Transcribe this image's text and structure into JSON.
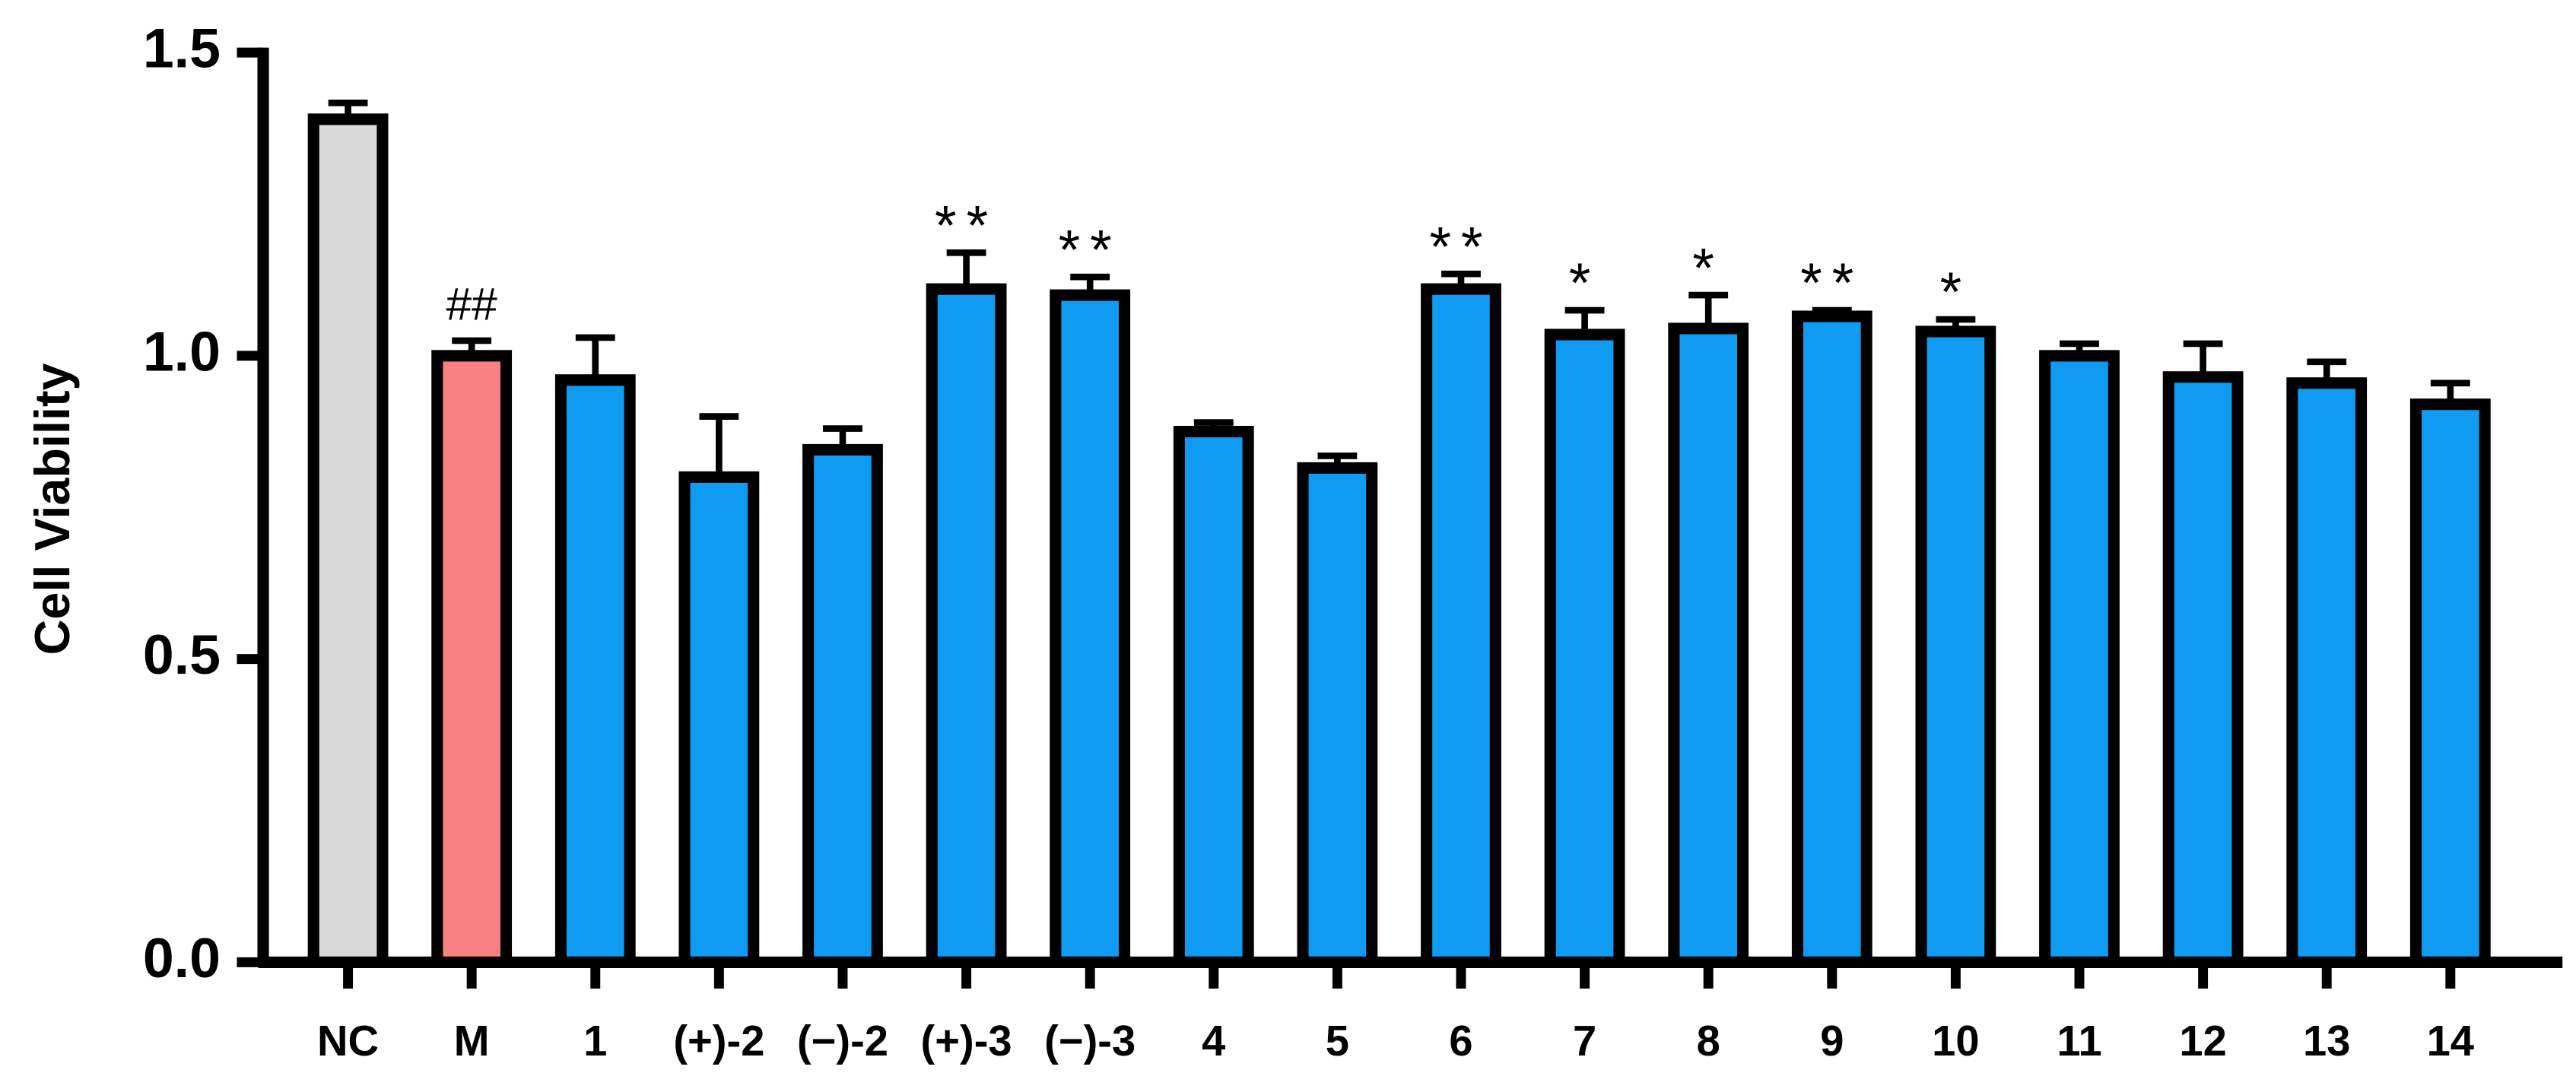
{
  "chart_data": {
    "type": "bar",
    "y_label": "Cell Viability",
    "categories": [
      "NC",
      "M",
      "1",
      "(+)-2",
      "(−)-2",
      "(+)-3",
      "(−)-3",
      "4",
      "5",
      "6",
      "7",
      "8",
      "9",
      "10",
      "11",
      "12",
      "13",
      "14"
    ],
    "values": [
      1.39,
      1.0,
      0.96,
      0.8,
      0.845,
      1.11,
      1.1,
      0.875,
      0.815,
      1.11,
      1.035,
      1.045,
      1.065,
      1.04,
      1.0,
      0.965,
      0.955,
      0.92
    ],
    "errors": [
      0.027,
      0.025,
      0.07,
      0.1,
      0.035,
      0.06,
      0.03,
      0.015,
      0.02,
      0.025,
      0.04,
      0.055,
      0.01,
      0.02,
      0.02,
      0.055,
      0.035,
      0.035
    ],
    "colors": [
      "#d9d9d9",
      "#f88080",
      "#0f9bf2",
      "#0f9bf2",
      "#0f9bf2",
      "#0f9bf2",
      "#0f9bf2",
      "#0f9bf2",
      "#0f9bf2",
      "#0f9bf2",
      "#0f9bf2",
      "#0f9bf2",
      "#0f9bf2",
      "#0f9bf2",
      "#0f9bf2",
      "#0f9bf2",
      "#0f9bf2",
      "#0f9bf2"
    ],
    "annotations": [
      null,
      "##",
      null,
      null,
      null,
      "**",
      "**",
      null,
      null,
      "**",
      "*",
      "*",
      "**",
      "*",
      null,
      null,
      null,
      null
    ],
    "ylim": [
      0,
      1.5
    ],
    "yticks": [
      {
        "value": 0,
        "label": "0.0"
      },
      0.5,
      {
        "value": 1,
        "label": "1.0"
      },
      1.5
    ],
    "grid": false
  }
}
